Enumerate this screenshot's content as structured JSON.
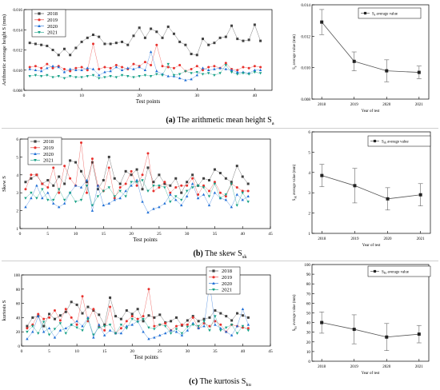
{
  "captions": [
    {
      "letter": "(a)",
      "text": "The arithmetic mean height S",
      "sub": "a"
    },
    {
      "letter": "(b)",
      "text": "The skew S",
      "sub": "sk"
    },
    {
      "letter": "(c)",
      "text": "The kurtosis S",
      "sub": "ku"
    }
  ],
  "colors": {
    "2018": "#404040",
    "2019": "#e8322e",
    "2020": "#1f6fd6",
    "2021": "#14a085"
  },
  "chart_data": [
    {
      "type": "line",
      "panel": "a-points",
      "title": "",
      "xlabel": "Test points",
      "ylabel": "Arithmetic average height  S (mm)",
      "xlim": [
        0,
        43
      ],
      "ylim": [
        0.008,
        0.016
      ],
      "xticks": [
        "0",
        "10",
        "20",
        "30",
        "40"
      ],
      "yticks": [
        "0.008",
        "0.010",
        "0.012",
        "0.014",
        "0.016"
      ],
      "legend": "top-left",
      "x": [
        1,
        2,
        3,
        4,
        5,
        6,
        7,
        8,
        9,
        10,
        11,
        12,
        13,
        14,
        15,
        16,
        17,
        18,
        19,
        20,
        21,
        22,
        23,
        24,
        25,
        26,
        27,
        28,
        29,
        30,
        31,
        32,
        33,
        34,
        35,
        36,
        37,
        38,
        39,
        40,
        41
      ],
      "series": [
        {
          "name": "2018",
          "marker": "square",
          "values": [
            0.0127,
            0.0126,
            0.0125,
            0.0124,
            0.012,
            0.0115,
            0.0121,
            0.0115,
            0.0122,
            0.0128,
            0.0132,
            0.0135,
            0.0133,
            0.0126,
            0.0126,
            0.0127,
            0.0128,
            0.0125,
            0.0134,
            0.0142,
            0.0132,
            0.0141,
            0.0138,
            0.0132,
            0.0143,
            0.0136,
            0.0128,
            0.0125,
            0.0116,
            0.0115,
            0.0131,
            0.0125,
            0.0127,
            0.0132,
            0.0133,
            0.0144,
            0.0131,
            0.0129,
            0.013,
            0.0145,
            0.0129
          ]
        },
        {
          "name": "2019",
          "marker": "circle",
          "values": [
            0.0103,
            0.0104,
            0.0102,
            0.0106,
            0.0102,
            0.0104,
            0.0101,
            0.0099,
            0.0102,
            0.0103,
            0.01,
            0.0126,
            0.0101,
            0.0103,
            0.0102,
            0.0105,
            0.0103,
            0.0101,
            0.0106,
            0.0104,
            0.0108,
            0.0105,
            0.0125,
            0.0104,
            0.0103,
            0.0102,
            0.0105,
            0.0099,
            0.0101,
            0.0104,
            0.01,
            0.0103,
            0.0104,
            0.0102,
            0.0107,
            0.0101,
            0.01,
            0.0103,
            0.0102,
            0.0104,
            0.0103
          ]
        },
        {
          "name": "2020",
          "marker": "triangle-up",
          "values": [
            0.0101,
            0.01,
            0.0099,
            0.0102,
            0.0104,
            0.0103,
            0.0098,
            0.0101,
            0.01,
            0.01,
            0.0102,
            0.0101,
            0.0095,
            0.0098,
            0.0099,
            0.0103,
            0.01,
            0.0102,
            0.0101,
            0.0103,
            0.01,
            0.0118,
            0.0099,
            0.0096,
            0.0094,
            0.0094,
            0.0092,
            0.009,
            0.0091,
            0.0095,
            0.0102,
            0.01,
            0.0101,
            0.0102,
            0.0101,
            0.01,
            0.0098,
            0.0098,
            0.0097,
            0.01,
            0.01
          ]
        },
        {
          "name": "2021",
          "marker": "triangle-down",
          "values": [
            0.0094,
            0.0095,
            0.0094,
            0.0095,
            0.0093,
            0.0094,
            0.0092,
            0.0094,
            0.0093,
            0.0093,
            0.0094,
            0.0095,
            0.0092,
            0.0093,
            0.0094,
            0.0093,
            0.0095,
            0.0094,
            0.0093,
            0.0094,
            0.0095,
            0.0094,
            0.0096,
            0.0095,
            0.0106,
            0.0095,
            0.0096,
            0.0099,
            0.0097,
            0.0098,
            0.0096,
            0.0097,
            0.0095,
            0.0097,
            0.0105,
            0.0098,
            0.0096,
            0.0097,
            0.0096,
            0.0098,
            0.0097
          ]
        }
      ]
    },
    {
      "type": "line",
      "panel": "a-mean",
      "title": "",
      "xlabel": "Year of test",
      "ylabel": "S  average value  (mm)",
      "ylabel_symbol": "S",
      "ylabel_sub": "a",
      "xlim": [
        2017.7,
        2021.3
      ],
      "ylim": [
        0.008,
        0.014
      ],
      "categories": [
        "2018",
        "2019",
        "2020",
        "2021"
      ],
      "yticks": [
        "0.008",
        "0.010",
        "0.012",
        "0.014"
      ],
      "legend": "top-right",
      "series": [
        {
          "name": "S  average value",
          "name_symbol": "S",
          "name_sub": "a",
          "name_rest": " average value",
          "values": [
            0.0129,
            0.0104,
            0.0098,
            0.0097
          ],
          "errors": [
            0.0008,
            0.0006,
            0.0007,
            0.0004
          ]
        }
      ]
    },
    {
      "type": "line",
      "panel": "b-points",
      "title": "",
      "xlabel": "Test points",
      "ylabel": "Skew  S",
      "xlim": [
        0,
        45
      ],
      "ylim": [
        1,
        6
      ],
      "xticks": [
        "0",
        "5",
        "10",
        "15",
        "20",
        "25",
        "30",
        "35",
        "40",
        "45"
      ],
      "yticks": [
        "1",
        "2",
        "3",
        "4",
        "5",
        "6"
      ],
      "legend": "top-left",
      "x": [
        1,
        2,
        3,
        4,
        5,
        6,
        7,
        8,
        9,
        10,
        11,
        12,
        13,
        14,
        15,
        16,
        17,
        18,
        19,
        20,
        21,
        22,
        23,
        24,
        25,
        26,
        27,
        28,
        29,
        30,
        31,
        32,
        33,
        34,
        35,
        36,
        37,
        38,
        39,
        40,
        41
      ],
      "series": [
        {
          "name": "2018",
          "marker": "square",
          "values": [
            3.6,
            3.8,
            4.0,
            3.5,
            3.7,
            3.4,
            3.9,
            3.5,
            4.8,
            4.7,
            4.2,
            3.6,
            4.7,
            3.2,
            3.7,
            5.0,
            3.8,
            3.5,
            4.2,
            4.0,
            4.3,
            3.2,
            4.4,
            3.6,
            4.0,
            3.5,
            3.4,
            3.8,
            3.0,
            3.6,
            4.0,
            3.4,
            3.8,
            3.7,
            4.3,
            4.1,
            3.8,
            3.6,
            4.5,
            3.9,
            3.5
          ]
        },
        {
          "name": "2019",
          "marker": "circle",
          "values": [
            3.2,
            4.0,
            4.0,
            3.5,
            3.3,
            4.4,
            3.0,
            4.5,
            3.8,
            3.4,
            5.8,
            3.0,
            4.9,
            3.4,
            3.1,
            4.4,
            2.7,
            3.3,
            3.5,
            4.2,
            3.4,
            4.0,
            5.2,
            3.1,
            3.3,
            3.6,
            3.0,
            3.3,
            3.4,
            3.4,
            3.8,
            2.9,
            3.4,
            3.1,
            3.6,
            3.0,
            2.8,
            3.5,
            3.3,
            3.1,
            3.1
          ]
        },
        {
          "name": "2020",
          "marker": "triangle-up",
          "values": [
            2.2,
            2.7,
            3.4,
            2.7,
            3.0,
            2.4,
            2.2,
            2.4,
            3.0,
            3.4,
            3.3,
            3.7,
            2.0,
            3.4,
            2.3,
            2.4,
            2.6,
            2.7,
            3.1,
            3.4,
            3.7,
            2.5,
            1.9,
            2.1,
            2.2,
            2.4,
            2.9,
            2.6,
            2.3,
            2.8,
            3.5,
            2.7,
            2.9,
            2.3,
            3.0,
            2.7,
            2.6,
            2.2,
            2.9,
            2.6,
            2.8
          ]
        },
        {
          "name": "2021",
          "marker": "triangle-down",
          "values": [
            2.7,
            3.0,
            2.7,
            3.2,
            2.6,
            2.6,
            3.2,
            2.6,
            3.0,
            2.5,
            2.6,
            3.4,
            2.3,
            2.8,
            3.1,
            3.3,
            2.8,
            3.1,
            2.8,
            3.6,
            3.6,
            3.7,
            3.1,
            3.4,
            3.4,
            3.3,
            2.5,
            2.8,
            2.6,
            3.1,
            3.3,
            3.4,
            3.3,
            2.8,
            3.5,
            2.7,
            2.9,
            3.5,
            2.3,
            3.0,
            2.5
          ]
        }
      ]
    },
    {
      "type": "line",
      "panel": "b-mean",
      "title": "",
      "xlabel": "Year of test",
      "ylabel": "S   average value  (mm)",
      "ylabel_symbol": "S",
      "ylabel_sub": "sk",
      "xlim": [
        2017.7,
        2021.3
      ],
      "ylim": [
        1,
        6
      ],
      "categories": [
        "2018",
        "2019",
        "2020",
        "2021"
      ],
      "yticks": [
        "1",
        "2",
        "3",
        "4",
        "5",
        "6"
      ],
      "legend": "top-right",
      "series": [
        {
          "name": "S   average value",
          "name_symbol": "S",
          "name_sub": "sk",
          "name_rest": " average value",
          "values": [
            3.85,
            3.35,
            2.7,
            2.9
          ],
          "errors": [
            0.55,
            0.85,
            0.55,
            0.55
          ]
        }
      ]
    },
    {
      "type": "line",
      "panel": "c-points",
      "title": "",
      "xlabel": "Test points",
      "ylabel": "kurtosis  S",
      "xlim": [
        0,
        45
      ],
      "ylim": [
        0,
        100
      ],
      "xticks": [
        "0",
        "5",
        "10",
        "15",
        "20",
        "25",
        "30",
        "35",
        "40",
        "45"
      ],
      "yticks": [
        "0",
        "20",
        "40",
        "60",
        "80",
        "100"
      ],
      "legend": "top-right",
      "x": [
        1,
        2,
        3,
        4,
        5,
        6,
        7,
        8,
        9,
        10,
        11,
        12,
        13,
        14,
        15,
        16,
        17,
        18,
        19,
        20,
        21,
        22,
        23,
        24,
        25,
        26,
        27,
        28,
        29,
        30,
        31,
        32,
        33,
        34,
        35,
        36,
        37,
        38,
        39,
        40,
        41
      ],
      "series": [
        {
          "name": "2018",
          "marker": "square",
          "values": [
            28,
            40,
            42,
            28,
            45,
            38,
            43,
            48,
            62,
            58,
            46,
            55,
            50,
            44,
            30,
            68,
            42,
            38,
            50,
            45,
            52,
            35,
            43,
            40,
            44,
            33,
            35,
            40,
            29,
            36,
            42,
            35,
            38,
            40,
            50,
            46,
            42,
            36,
            46,
            43,
            40
          ]
        },
        {
          "name": "2019",
          "marker": "circle",
          "values": [
            25,
            30,
            45,
            38,
            40,
            50,
            36,
            52,
            40,
            30,
            70,
            35,
            52,
            27,
            22,
            55,
            18,
            25,
            35,
            42,
            38,
            42,
            80,
            28,
            30,
            32,
            22,
            28,
            30,
            30,
            40,
            25,
            32,
            28,
            35,
            30,
            20,
            30,
            28,
            26,
            25
          ]
        },
        {
          "name": "2020",
          "marker": "triangle-up",
          "values": [
            10,
            20,
            42,
            20,
            25,
            12,
            22,
            25,
            30,
            35,
            28,
            40,
            12,
            30,
            15,
            22,
            18,
            18,
            28,
            30,
            35,
            20,
            10,
            12,
            15,
            18,
            22,
            20,
            15,
            22,
            32,
            25,
            28,
            88,
            30,
            25,
            20,
            15,
            28,
            52,
            30
          ]
        },
        {
          "name": "2021",
          "marker": "triangle-down",
          "values": [
            20,
            28,
            18,
            34,
            16,
            24,
            32,
            18,
            30,
            26,
            22,
            38,
            16,
            26,
            28,
            30,
            18,
            30,
            25,
            38,
            34,
            38,
            26,
            24,
            30,
            28,
            18,
            24,
            18,
            27,
            30,
            28,
            35,
            22,
            42,
            22,
            26,
            30,
            18,
            28,
            22
          ]
        }
      ]
    },
    {
      "type": "line",
      "panel": "c-mean",
      "title": "",
      "xlabel": "Year of test",
      "ylabel": "S   average value  (mm)",
      "ylabel_symbol": "S",
      "ylabel_sub": "ku",
      "xlim": [
        2017.7,
        2021.3
      ],
      "ylim": [
        0,
        100
      ],
      "categories": [
        "2018",
        "2019",
        "2020",
        "2021"
      ],
      "yticks": [
        "0",
        "10",
        "20",
        "30",
        "40",
        "50",
        "60",
        "70",
        "80",
        "90",
        "100"
      ],
      "legend": "top-right",
      "series": [
        {
          "name": "S   average value",
          "name_symbol": "S",
          "name_sub": "ku",
          "name_rest": " average value",
          "values": [
            40,
            33,
            25,
            28
          ],
          "errors": [
            11,
            15,
            14,
            9
          ]
        }
      ]
    }
  ]
}
